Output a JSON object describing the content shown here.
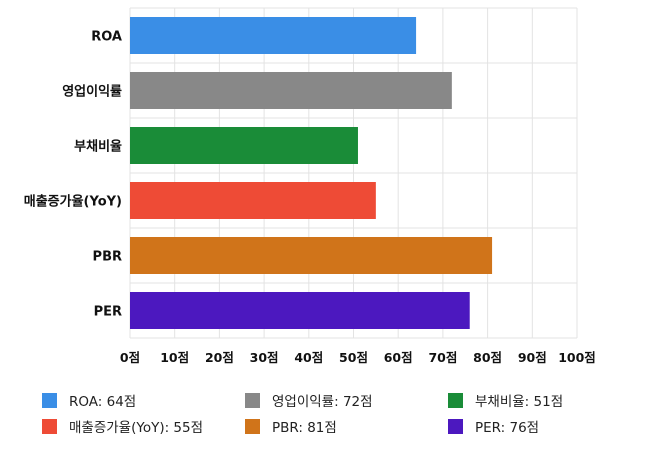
{
  "chart_data": {
    "type": "bar",
    "orientation": "horizontal",
    "categories": [
      "ROA",
      "영업이익률",
      "부채비율",
      "매출증가율(YoY)",
      "PBR",
      "PER"
    ],
    "values": [
      64,
      72,
      51,
      55,
      81,
      76
    ],
    "colors": [
      "#3a8ee6",
      "#888888",
      "#1a8c38",
      "#ee4b36",
      "#d0741a",
      "#4c18bf"
    ],
    "xlim": [
      0,
      100
    ],
    "x_ticks": [
      "0점",
      "10점",
      "20점",
      "30점",
      "40점",
      "50점",
      "60점",
      "70점",
      "80점",
      "90점",
      "100점"
    ],
    "grid": true,
    "legend": {
      "position": "bottom",
      "entries": [
        "ROA: 64점",
        "영업이익률: 72점",
        "부채비율: 51점",
        "매출증가율(YoY): 55점",
        "PBR: 81점",
        "PER: 76점"
      ]
    }
  }
}
